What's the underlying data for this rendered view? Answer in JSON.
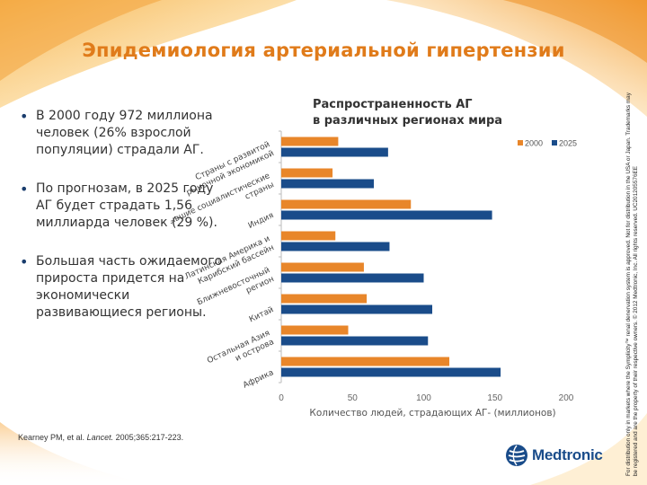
{
  "slide": {
    "title": "Эпидемиология артериальной гипертензии",
    "bullets": [
      "В 2000 году 972 миллиона человек (26% взрослой популяции) страдали АГ.",
      "По прогнозам, в 2025 году АГ будет страдать 1,56 миллиарда человек (29 %).",
      "Большая часть ожидаемого прироста придется на экономически развивающиеся регионы."
    ],
    "citation_authors": "Kearney PM, et al.",
    "citation_journal": "Lancet.",
    "citation_details": "2005;365:217-223.",
    "side_note": "For distribution only in markets where the Symplicity™ renal denervation system is approved. Not for distribution in the USA or Japan. Trademarks may be registered and are the property of their respective owners. © 2012 Medtronic, Inc. All rights reserved. UC201205576EE",
    "logo_text": "Medtronic"
  },
  "colors": {
    "title": "#e07b1a",
    "series_2000": "#e8862a",
    "series_2025": "#1a4c8a",
    "logo": "#1a4c8a"
  },
  "chart_data": {
    "type": "bar",
    "orientation": "horizontal",
    "title_line1": "Распространенность АГ",
    "title_line2": "в различных регионах мира",
    "xlabel": "Количество людей, страдающих АГ- (миллионов)",
    "xlim": [
      0,
      200
    ],
    "xticks": [
      0,
      50,
      100,
      150,
      200
    ],
    "categories": [
      "Страны с развитой рыночной экономикой",
      "Бывшие социалистические страны",
      "Индия",
      "Латинская Америка и Карибский бассейн",
      "Ближневосточный регион",
      "Китай",
      "Остальная Азия и острова",
      "Африка"
    ],
    "series": [
      {
        "name": "2000",
        "values": [
          40,
          36,
          91,
          38,
          58,
          60,
          47,
          118
        ]
      },
      {
        "name": "2025",
        "values": [
          75,
          65,
          148,
          76,
          100,
          106,
          103,
          154
        ]
      }
    ],
    "legend_position": "top-right"
  }
}
